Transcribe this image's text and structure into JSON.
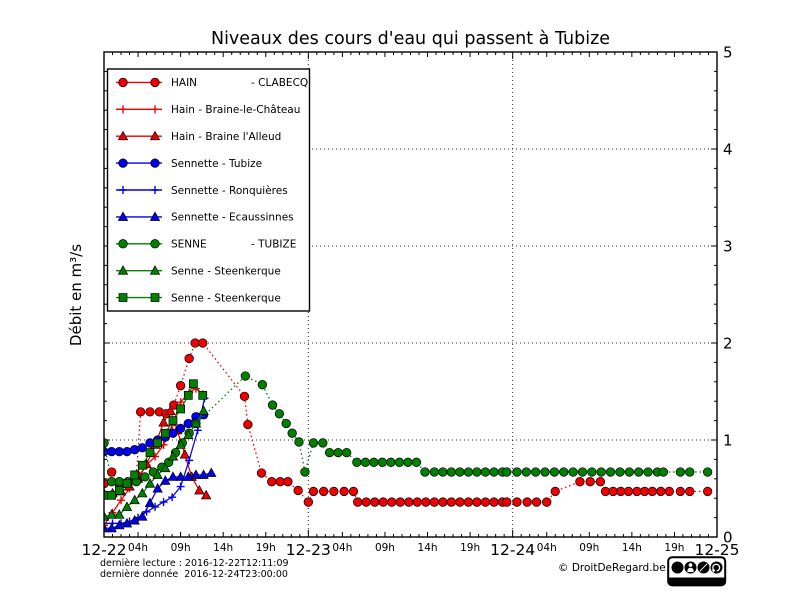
{
  "footer": {
    "line1": "dernière lecture : 2016-12-22T12:11:09",
    "line2": "dernière donnée  2016-12-24T23:00:00",
    "copyright": "© DroitDeRegard.be",
    "badges": [
      "BY",
      "NC",
      "SA"
    ]
  },
  "chart_data": {
    "type": "line",
    "title": "Niveaux des cours d'eau qui passent à Tubize",
    "xlabel": "",
    "ylabel": "Débit en m³/s",
    "ylim": [
      0,
      5
    ],
    "yticks": [
      0,
      1,
      2,
      3,
      4,
      5
    ],
    "ytick_side": "right",
    "y_minor_step": 0.2,
    "x_unit": "hours since 2016-12-22 00:00",
    "xlim": [
      0,
      72
    ],
    "grid": {
      "style": "dotted",
      "horizontal_at": [
        1,
        2,
        3,
        4
      ],
      "vertical_at_hours": [
        24,
        48
      ]
    },
    "x_axis": {
      "day_labels": [
        {
          "hour": 0,
          "label": "12-22"
        },
        {
          "hour": 24,
          "label": "12-23"
        },
        {
          "hour": 48,
          "label": "12-24"
        },
        {
          "hour": 72,
          "label": "12-25"
        }
      ],
      "hour_labels": [
        {
          "hour": 4,
          "label": "04h"
        },
        {
          "hour": 9,
          "label": "09h"
        },
        {
          "hour": 14,
          "label": "14h"
        },
        {
          "hour": 19,
          "label": "19h"
        },
        {
          "hour": 28,
          "label": "04h"
        },
        {
          "hour": 33,
          "label": "09h"
        },
        {
          "hour": 38,
          "label": "14h"
        },
        {
          "hour": 43,
          "label": "19h"
        },
        {
          "hour": 52,
          "label": "04h"
        },
        {
          "hour": 57,
          "label": "09h"
        },
        {
          "hour": 62,
          "label": "14h"
        },
        {
          "hour": 67,
          "label": "19h"
        }
      ]
    },
    "legend_position": "upper left",
    "series": [
      {
        "name": "HAIN - CLABECQ",
        "legend_label": [
          "HAIN",
          "- CLABECQ"
        ],
        "color": "#ee0000",
        "marker": "circle",
        "linestyle": "dotted",
        "points": [
          [
            0,
            0.55
          ],
          [
            0.9,
            0.67
          ],
          [
            1.8,
            0.55
          ],
          [
            2.8,
            0.55
          ],
          [
            3.8,
            0.64
          ],
          [
            4.3,
            1.29
          ],
          [
            5.4,
            1.29
          ],
          [
            6.5,
            1.29
          ],
          [
            7.3,
            1.27
          ],
          [
            8.2,
            1.36
          ],
          [
            9,
            1.56
          ],
          [
            10,
            1.84
          ],
          [
            10.7,
            2.0
          ],
          [
            11.6,
            2.0
          ],
          [
            16.5,
            1.45
          ],
          [
            16.9,
            1.16
          ],
          [
            18.5,
            0.66
          ],
          [
            19.7,
            0.57
          ],
          [
            20.7,
            0.57
          ],
          [
            21.6,
            0.57
          ],
          [
            22.8,
            0.48
          ],
          [
            24,
            0.36
          ],
          [
            24.6,
            0.47
          ],
          [
            25.8,
            0.47
          ],
          [
            27,
            0.47
          ],
          [
            28.2,
            0.47
          ],
          [
            29.3,
            0.47
          ],
          [
            29.8,
            0.36
          ],
          [
            30.8,
            0.36
          ],
          [
            31.8,
            0.36
          ],
          [
            32.8,
            0.36
          ],
          [
            33.8,
            0.36
          ],
          [
            34.8,
            0.36
          ],
          [
            35.8,
            0.36
          ],
          [
            36.8,
            0.36
          ],
          [
            37.8,
            0.36
          ],
          [
            38.8,
            0.36
          ],
          [
            39.8,
            0.36
          ],
          [
            40.8,
            0.36
          ],
          [
            41.8,
            0.36
          ],
          [
            42.8,
            0.36
          ],
          [
            43.8,
            0.36
          ],
          [
            44.8,
            0.36
          ],
          [
            45.8,
            0.36
          ],
          [
            46.8,
            0.36
          ],
          [
            47.3,
            0.36
          ],
          [
            48.5,
            0.36
          ],
          [
            49.7,
            0.36
          ],
          [
            50.8,
            0.36
          ],
          [
            52,
            0.36
          ],
          [
            53,
            0.47
          ],
          [
            55.9,
            0.57
          ],
          [
            57.1,
            0.57
          ],
          [
            58.3,
            0.57
          ],
          [
            58.9,
            0.47
          ],
          [
            59.8,
            0.47
          ],
          [
            60.7,
            0.47
          ],
          [
            61.6,
            0.47
          ],
          [
            62.6,
            0.47
          ],
          [
            63.5,
            0.47
          ],
          [
            64.4,
            0.47
          ],
          [
            65.4,
            0.47
          ],
          [
            66.4,
            0.47
          ],
          [
            67.7,
            0.47
          ],
          [
            68.8,
            0.47
          ],
          [
            70.9,
            0.47
          ]
        ]
      },
      {
        "name": "Hain - Braine-le-Château",
        "legend_label": [
          "Hain - Braine-le-Château",
          ""
        ],
        "color": "#ee0000",
        "marker": "plus",
        "linestyle": "solid",
        "points": [
          [
            0,
            0.12
          ],
          [
            1,
            0.25
          ],
          [
            2,
            0.38
          ],
          [
            3,
            0.5
          ],
          [
            4,
            0.62
          ],
          [
            5,
            0.74
          ],
          [
            6,
            0.83
          ],
          [
            7,
            0.95
          ],
          [
            8,
            1.15
          ],
          [
            9,
            1.39
          ],
          [
            10,
            1.49
          ],
          [
            10.8,
            1.53
          ],
          [
            11.6,
            1.47
          ]
        ]
      },
      {
        "name": "Hain - Braine l'Alleud",
        "legend_label": [
          "Hain - Braine l'Alleud",
          ""
        ],
        "color": "#ee0000",
        "marker": "triangle",
        "linestyle": "solid",
        "points": [
          [
            0,
            0.45
          ],
          [
            1,
            0.45
          ],
          [
            2,
            0.47
          ],
          [
            3,
            0.52
          ],
          [
            4,
            0.6
          ],
          [
            5,
            0.75
          ],
          [
            6,
            0.95
          ],
          [
            7,
            1.18
          ],
          [
            7.8,
            1.3
          ],
          [
            8.6,
            1.1
          ],
          [
            9.5,
            0.85
          ],
          [
            10.3,
            0.62
          ],
          [
            11.2,
            0.48
          ],
          [
            12,
            0.43
          ]
        ]
      },
      {
        "name": "Sennette - Tubize",
        "legend_label": [
          "Sennette - Tubize",
          ""
        ],
        "color": "#0000ee",
        "marker": "circle",
        "linestyle": "solid",
        "points": [
          [
            0,
            0.88
          ],
          [
            0.9,
            0.88
          ],
          [
            1.8,
            0.88
          ],
          [
            2.7,
            0.88
          ],
          [
            3.6,
            0.9
          ],
          [
            4.5,
            0.92
          ],
          [
            5.4,
            0.97
          ],
          [
            6.3,
            1.0
          ],
          [
            7.2,
            1.03
          ],
          [
            8.1,
            1.07
          ],
          [
            9,
            1.12
          ],
          [
            9.9,
            1.17
          ],
          [
            10.8,
            1.24
          ],
          [
            11.7,
            1.26
          ]
        ]
      },
      {
        "name": "Sennette - Ronquières",
        "legend_label": [
          "Sennette - Ronquières",
          ""
        ],
        "color": "#0000ee",
        "marker": "plus",
        "linestyle": "solid",
        "points": [
          [
            0,
            0.14
          ],
          [
            1,
            0.14
          ],
          [
            2,
            0.14
          ],
          [
            3,
            0.16
          ],
          [
            4,
            0.2
          ],
          [
            5,
            0.26
          ],
          [
            6,
            0.31
          ],
          [
            7,
            0.36
          ],
          [
            8,
            0.41
          ],
          [
            9,
            0.52
          ],
          [
            10,
            0.79
          ],
          [
            11,
            1.1
          ],
          [
            11.8,
            1.43
          ]
        ]
      },
      {
        "name": "Sennette - Ecaussinnes",
        "legend_label": [
          "Sennette - Ecaussinnes",
          ""
        ],
        "color": "#0000ee",
        "marker": "triangle",
        "linestyle": "solid",
        "points": [
          [
            0,
            0.09
          ],
          [
            0.9,
            0.09
          ],
          [
            1.8,
            0.12
          ],
          [
            2.7,
            0.14
          ],
          [
            3.6,
            0.17
          ],
          [
            4.5,
            0.21
          ],
          [
            5.4,
            0.35
          ],
          [
            6.3,
            0.5
          ],
          [
            7.2,
            0.58
          ],
          [
            8.1,
            0.62
          ],
          [
            9,
            0.62
          ],
          [
            9.9,
            0.62
          ],
          [
            10.8,
            0.64
          ],
          [
            11.7,
            0.64
          ],
          [
            12.6,
            0.66
          ]
        ]
      },
      {
        "name": "SENNE - TUBIZE",
        "legend_label": [
          "SENNE",
          "- TUBIZE"
        ],
        "color": "#007f00",
        "marker": "circle",
        "linestyle": "dotted",
        "points": [
          [
            0,
            0.97
          ],
          [
            0.9,
            0.57
          ],
          [
            1.8,
            0.57
          ],
          [
            2.8,
            0.57
          ],
          [
            3.8,
            0.57
          ],
          [
            4.8,
            0.62
          ],
          [
            5.8,
            0.67
          ],
          [
            6.8,
            0.72
          ],
          [
            7.6,
            0.77
          ],
          [
            8.4,
            0.87
          ],
          [
            9.2,
            0.97
          ],
          [
            10,
            1.07
          ],
          [
            10.8,
            1.17
          ],
          [
            16.6,
            1.66
          ],
          [
            18.6,
            1.57
          ],
          [
            19.8,
            1.36
          ],
          [
            20.6,
            1.27
          ],
          [
            21.4,
            1.17
          ],
          [
            22.1,
            1.07
          ],
          [
            22.9,
            0.98
          ],
          [
            23.6,
            0.67
          ],
          [
            24.6,
            0.97
          ],
          [
            25.7,
            0.97
          ],
          [
            26.5,
            0.87
          ],
          [
            27.5,
            0.87
          ],
          [
            28.5,
            0.87
          ],
          [
            29.7,
            0.77
          ],
          [
            30.7,
            0.77
          ],
          [
            31.7,
            0.77
          ],
          [
            32.7,
            0.77
          ],
          [
            33.7,
            0.77
          ],
          [
            34.7,
            0.77
          ],
          [
            35.7,
            0.77
          ],
          [
            36.7,
            0.77
          ],
          [
            37.7,
            0.67
          ],
          [
            38.8,
            0.67
          ],
          [
            39.8,
            0.67
          ],
          [
            40.8,
            0.67
          ],
          [
            41.8,
            0.67
          ],
          [
            42.8,
            0.67
          ],
          [
            43.8,
            0.67
          ],
          [
            44.8,
            0.67
          ],
          [
            45.8,
            0.67
          ],
          [
            46.8,
            0.67
          ],
          [
            47.3,
            0.67
          ],
          [
            48.5,
            0.67
          ],
          [
            49.6,
            0.67
          ],
          [
            50.7,
            0.67
          ],
          [
            51.8,
            0.67
          ],
          [
            52.9,
            0.67
          ],
          [
            54,
            0.67
          ],
          [
            55.1,
            0.67
          ],
          [
            56.2,
            0.67
          ],
          [
            57.3,
            0.67
          ],
          [
            58.4,
            0.67
          ],
          [
            59.5,
            0.67
          ],
          [
            60.6,
            0.67
          ],
          [
            61.7,
            0.67
          ],
          [
            62.8,
            0.67
          ],
          [
            63.9,
            0.67
          ],
          [
            65,
            0.67
          ],
          [
            65.7,
            0.67
          ],
          [
            67.7,
            0.67
          ],
          [
            68.8,
            0.67
          ],
          [
            70.9,
            0.67
          ]
        ]
      },
      {
        "name": "Senne - Steenkerque",
        "legend_label": [
          "Senne - Steenkerque",
          ""
        ],
        "color": "#007f00",
        "marker": "triangle",
        "linestyle": "solid",
        "points": [
          [
            0,
            0.21
          ],
          [
            0.9,
            0.23
          ],
          [
            1.8,
            0.23
          ],
          [
            2.7,
            0.31
          ],
          [
            3.6,
            0.38
          ],
          [
            4.5,
            0.45
          ],
          [
            5.4,
            0.55
          ],
          [
            6.3,
            0.64
          ],
          [
            7.2,
            0.71
          ],
          [
            8.1,
            0.83
          ],
          [
            9,
            0.95
          ],
          [
            9.9,
            1.05
          ],
          [
            10.8,
            1.17
          ],
          [
            11.7,
            1.3
          ]
        ]
      },
      {
        "name": "Senne - Steenkerque",
        "legend_label": [
          "Senne - Steenkerque",
          ""
        ],
        "color": "#007f00",
        "marker": "square",
        "linestyle": "solid",
        "points": [
          [
            0,
            0.43
          ],
          [
            0.9,
            0.43
          ],
          [
            1.8,
            0.48
          ],
          [
            2.7,
            0.55
          ],
          [
            3.6,
            0.64
          ],
          [
            4.5,
            0.74
          ],
          [
            5.4,
            0.87
          ],
          [
            6.3,
            0.97
          ],
          [
            7.2,
            1.07
          ],
          [
            8.1,
            1.2
          ],
          [
            9,
            1.32
          ],
          [
            9.9,
            1.46
          ],
          [
            10.5,
            1.58
          ],
          [
            11.6,
            1.46
          ]
        ]
      }
    ]
  }
}
